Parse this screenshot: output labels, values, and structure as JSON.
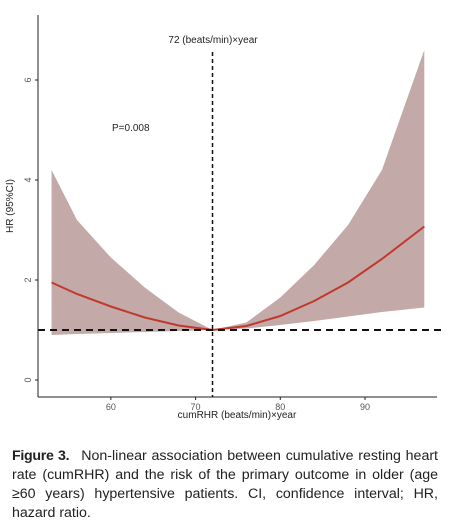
{
  "chart_data": {
    "type": "line",
    "x": [
      53,
      56,
      60,
      64,
      68,
      72,
      76,
      80,
      84,
      88,
      92,
      97
    ],
    "values": [
      1.95,
      1.72,
      1.47,
      1.25,
      1.09,
      1.0,
      1.08,
      1.28,
      1.58,
      1.95,
      2.42,
      3.07
    ],
    "ci_lower": [
      0.9,
      0.92,
      0.94,
      0.96,
      0.98,
      1.0,
      1.03,
      1.1,
      1.18,
      1.27,
      1.36,
      1.45
    ],
    "ci_upper": [
      4.2,
      3.2,
      2.45,
      1.85,
      1.35,
      1.0,
      1.15,
      1.65,
      2.3,
      3.1,
      4.2,
      6.6
    ],
    "color": "#c0392b",
    "band_color": "#c4a9a9",
    "xlim": [
      51.4,
      98.5
    ],
    "ylim": [
      -0.34,
      7.3
    ],
    "xticks": [
      60,
      70,
      80,
      90
    ],
    "yticks": [
      0,
      2,
      4,
      6
    ],
    "x_label": "cumRHR (beats/min)×year",
    "y_label": "HR (95%CI)",
    "reference_x": 72,
    "reference_x_label": "72 (beats/min)×year",
    "reference_y": 1,
    "annotation": "P=0.008"
  },
  "caption": {
    "label": "Figure 3.",
    "text": "Non-linear association between cumulative resting heart rate (cumRHR) and the risk of the primary outcome in older (age ≥60 years) hypertensive patients. CI, confidence interval; HR, hazard ratio."
  }
}
